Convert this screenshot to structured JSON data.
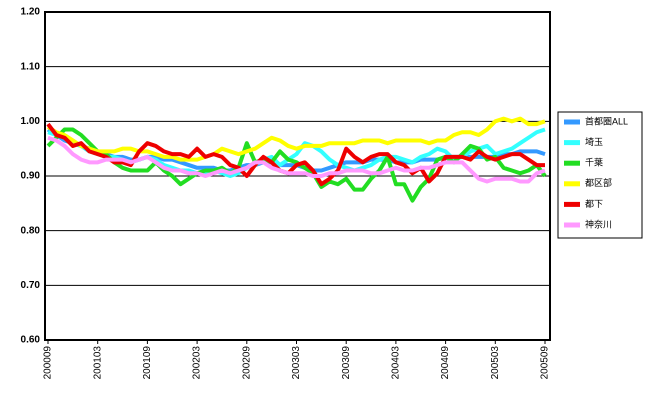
{
  "chart_data": {
    "type": "line",
    "categories": [
      "200009",
      null,
      null,
      null,
      null,
      null,
      "200103",
      null,
      null,
      null,
      null,
      null,
      "200109",
      null,
      null,
      null,
      null,
      null,
      "200203",
      null,
      null,
      null,
      null,
      null,
      "200209",
      null,
      null,
      null,
      null,
      null,
      "200303",
      null,
      null,
      null,
      null,
      null,
      "200309",
      null,
      null,
      null,
      null,
      null,
      "200403",
      null,
      null,
      null,
      null,
      null,
      "200409",
      null,
      null,
      null,
      null,
      null,
      "200503",
      null,
      null,
      null,
      null,
      null,
      "200509"
    ],
    "series": [
      {
        "name": "首都圏ALL",
        "color": "#3399ff",
        "values": [
          0.985,
          0.975,
          0.965,
          0.96,
          0.955,
          0.95,
          0.945,
          0.94,
          0.935,
          0.935,
          0.93,
          0.93,
          0.935,
          0.935,
          0.93,
          0.93,
          0.925,
          0.92,
          0.915,
          0.915,
          0.915,
          0.91,
          0.91,
          0.915,
          0.92,
          0.92,
          0.925,
          0.925,
          0.92,
          0.92,
          0.92,
          0.915,
          0.91,
          0.91,
          0.915,
          0.92,
          0.925,
          0.925,
          0.925,
          0.93,
          0.93,
          0.93,
          0.925,
          0.925,
          0.925,
          0.93,
          0.93,
          0.93,
          0.935,
          0.935,
          0.935,
          0.935,
          0.935,
          0.935,
          0.935,
          0.94,
          0.94,
          0.945,
          0.945,
          0.945,
          0.94
        ]
      },
      {
        "name": "埼玉",
        "color": "#33ffff",
        "values": [
          0.98,
          0.975,
          0.97,
          0.96,
          0.955,
          0.945,
          0.94,
          0.935,
          0.935,
          0.93,
          0.925,
          0.93,
          0.935,
          0.93,
          0.92,
          0.915,
          0.91,
          0.91,
          0.905,
          0.905,
          0.91,
          0.905,
          0.9,
          0.905,
          0.915,
          0.92,
          0.93,
          0.935,
          0.92,
          0.93,
          0.94,
          0.96,
          0.955,
          0.945,
          0.93,
          0.92,
          0.915,
          0.91,
          0.915,
          0.92,
          0.93,
          0.935,
          0.935,
          0.93,
          0.925,
          0.935,
          0.94,
          0.95,
          0.945,
          0.93,
          0.935,
          0.945,
          0.95,
          0.955,
          0.94,
          0.945,
          0.95,
          0.96,
          0.97,
          0.98,
          0.985
        ]
      },
      {
        "name": "千葉",
        "color": "#22dd22",
        "values": [
          0.955,
          0.97,
          0.985,
          0.985,
          0.975,
          0.96,
          0.945,
          0.94,
          0.925,
          0.915,
          0.91,
          0.91,
          0.91,
          0.925,
          0.91,
          0.9,
          0.885,
          0.895,
          0.905,
          0.91,
          0.91,
          0.915,
          0.905,
          0.915,
          0.96,
          0.925,
          0.93,
          0.925,
          0.945,
          0.93,
          0.925,
          0.915,
          0.905,
          0.88,
          0.89,
          0.885,
          0.895,
          0.875,
          0.875,
          0.895,
          0.91,
          0.935,
          0.885,
          0.885,
          0.855,
          0.88,
          0.895,
          0.93,
          0.935,
          0.925,
          0.94,
          0.955,
          0.95,
          0.93,
          0.935,
          0.915,
          0.91,
          0.905,
          0.91,
          0.92,
          0.9
        ]
      },
      {
        "name": "都区部",
        "color": "#ffff00",
        "values": [
          0.99,
          0.98,
          0.975,
          0.965,
          0.955,
          0.95,
          0.945,
          0.945,
          0.945,
          0.95,
          0.95,
          0.945,
          0.945,
          0.94,
          0.935,
          0.935,
          0.93,
          0.93,
          0.93,
          0.935,
          0.94,
          0.95,
          0.945,
          0.94,
          0.945,
          0.95,
          0.96,
          0.97,
          0.965,
          0.955,
          0.95,
          0.955,
          0.955,
          0.955,
          0.96,
          0.96,
          0.96,
          0.96,
          0.965,
          0.965,
          0.965,
          0.96,
          0.965,
          0.965,
          0.965,
          0.965,
          0.96,
          0.965,
          0.965,
          0.975,
          0.98,
          0.98,
          0.975,
          0.985,
          1.0,
          1.005,
          1.0,
          1.005,
          0.995,
          0.995,
          1.0
        ]
      },
      {
        "name": "都下",
        "color": "#ee0000",
        "values": [
          0.995,
          0.975,
          0.97,
          0.955,
          0.96,
          0.945,
          0.94,
          0.935,
          0.925,
          0.925,
          0.92,
          0.945,
          0.96,
          0.955,
          0.945,
          0.94,
          0.94,
          0.935,
          0.95,
          0.935,
          0.94,
          0.935,
          0.92,
          0.915,
          0.9,
          0.92,
          0.935,
          0.925,
          0.91,
          0.905,
          0.92,
          0.925,
          0.91,
          0.885,
          0.895,
          0.91,
          0.95,
          0.935,
          0.925,
          0.935,
          0.94,
          0.94,
          0.925,
          0.92,
          0.905,
          0.915,
          0.89,
          0.905,
          0.935,
          0.935,
          0.935,
          0.93,
          0.945,
          0.935,
          0.93,
          0.935,
          0.94,
          0.94,
          0.93,
          0.92,
          0.92
        ]
      },
      {
        "name": "神奈川",
        "color": "#ff99ff",
        "values": [
          0.97,
          0.965,
          0.955,
          0.94,
          0.93,
          0.925,
          0.925,
          0.93,
          0.93,
          0.93,
          0.925,
          0.93,
          0.935,
          0.925,
          0.915,
          0.91,
          0.91,
          0.905,
          0.905,
          0.9,
          0.905,
          0.91,
          0.905,
          0.91,
          0.915,
          0.925,
          0.925,
          0.915,
          0.91,
          0.905,
          0.905,
          0.905,
          0.9,
          0.9,
          0.905,
          0.905,
          0.91,
          0.91,
          0.91,
          0.905,
          0.905,
          0.91,
          0.915,
          0.91,
          0.91,
          0.915,
          0.915,
          0.92,
          0.925,
          0.925,
          0.925,
          0.91,
          0.895,
          0.89,
          0.895,
          0.895,
          0.895,
          0.89,
          0.89,
          0.905,
          0.91
        ]
      }
    ],
    "ylim": [
      0.6,
      1.2
    ],
    "yticks": [
      {
        "value": 0.6,
        "label": "0.60"
      },
      {
        "value": 0.7,
        "label": "0.70"
      },
      {
        "value": 0.8,
        "label": "0.80"
      },
      {
        "value": 0.9,
        "label": "0.90"
      },
      {
        "value": 1.0,
        "label": "1.00"
      },
      {
        "value": 1.1,
        "label": "1.10"
      },
      {
        "value": 1.2,
        "label": "1.20"
      }
    ],
    "grid": true
  }
}
